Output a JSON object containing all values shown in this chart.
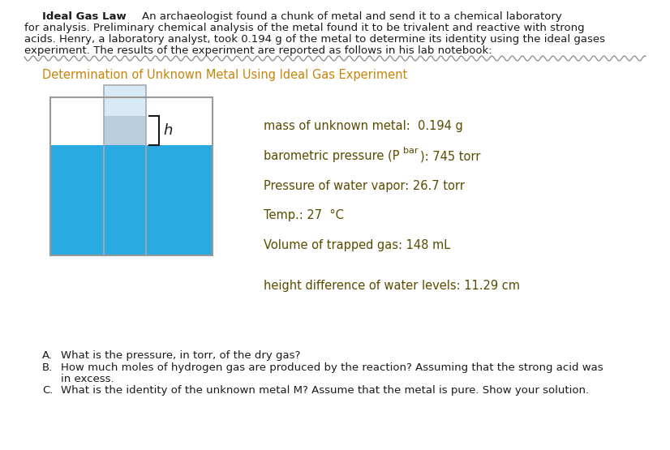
{
  "bg_color": "#ffffff",
  "text_color": "#1a1a1a",
  "section_color": "#C8840A",
  "meas_color": "#5a4a00",
  "water_color": "#29ABE2",
  "tube_fill": "#B8CEDD",
  "gas_fill": "#D8EAF5",
  "paragraph_line1": "An archaeologist found a chunk of metal and send it to a chemical laboratory",
  "paragraph_line2": "for analysis. Preliminary chemical analysis of the metal found it to be trivalent and reactive with strong",
  "paragraph_line3": "acids. Henry, a laboratory analyst, took 0.194 g of the metal to determine its identity using the ideal gases",
  "paragraph_line4": "experiment. The results of the experiment are reported as follows in his lab notebook:",
  "section_title": "Determination of Unknown Metal Using Ideal Gas Experiment",
  "meas1": "mass of unknown metal:  0.194 g",
  "meas2a": "barometric pressure (P",
  "meas2b": "bar",
  "meas2c": "): 745 torr",
  "meas3": "Pressure of water vapor: 26.7 torr",
  "meas4": "Temp.: 27  °C",
  "meas5": "Volume of trapped gas: 148 mL",
  "meas6": "height difference of water levels: 11.29 cm",
  "qA": "What is the pressure, in torr, of the dry gas?",
  "qB1": "How much moles of hydrogen gas are produced by the reaction? Assuming that the strong acid was",
  "qB2": "in excess.",
  "qC": "What is the identity of the unknown metal M? Assume that the metal is pure. Show your solution."
}
